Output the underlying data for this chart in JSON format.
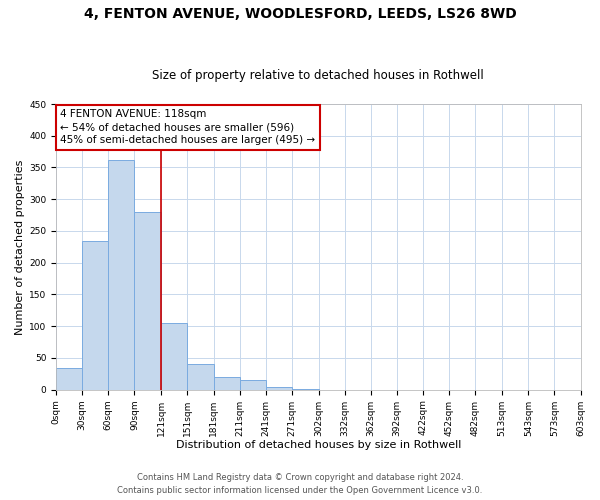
{
  "title1": "4, FENTON AVENUE, WOODLESFORD, LEEDS, LS26 8WD",
  "title2": "Size of property relative to detached houses in Rothwell",
  "xlabel": "Distribution of detached houses by size in Rothwell",
  "ylabel": "Number of detached properties",
  "bin_edges": [
    0,
    30,
    60,
    90,
    121,
    151,
    181,
    211,
    241,
    271,
    302,
    332,
    362,
    392,
    422,
    452,
    482,
    513,
    543,
    573,
    603
  ],
  "bar_heights": [
    35,
    235,
    362,
    280,
    105,
    40,
    20,
    16,
    5,
    1,
    0,
    0,
    0,
    0,
    0,
    0,
    0,
    0,
    0,
    0
  ],
  "bar_color": "#c5d8ed",
  "bar_edgecolor": "#7aabe0",
  "bar_linewidth": 0.7,
  "vline_x": 121,
  "vline_color": "#cc0000",
  "annotation_title": "4 FENTON AVENUE: 118sqm",
  "annotation_line1": "← 54% of detached houses are smaller (596)",
  "annotation_line2": "45% of semi-detached houses are larger (495) →",
  "annotation_box_edgecolor": "#cc0000",
  "annotation_box_facecolor": "#ffffff",
  "xlim": [
    0,
    603
  ],
  "ylim": [
    0,
    450
  ],
  "yticks": [
    0,
    50,
    100,
    150,
    200,
    250,
    300,
    350,
    400,
    450
  ],
  "xtick_labels": [
    "0sqm",
    "30sqm",
    "60sqm",
    "90sqm",
    "121sqm",
    "151sqm",
    "181sqm",
    "211sqm",
    "241sqm",
    "271sqm",
    "302sqm",
    "332sqm",
    "362sqm",
    "392sqm",
    "422sqm",
    "452sqm",
    "482sqm",
    "513sqm",
    "543sqm",
    "573sqm",
    "603sqm"
  ],
  "footer1": "Contains HM Land Registry data © Crown copyright and database right 2024.",
  "footer2": "Contains public sector information licensed under the Open Government Licence v3.0.",
  "bg_color": "#ffffff",
  "grid_color": "#c8d8ec",
  "title1_fontsize": 10,
  "title2_fontsize": 8.5,
  "axis_label_fontsize": 8,
  "tick_fontsize": 6.5,
  "annotation_fontsize": 7.5,
  "footer_fontsize": 6
}
